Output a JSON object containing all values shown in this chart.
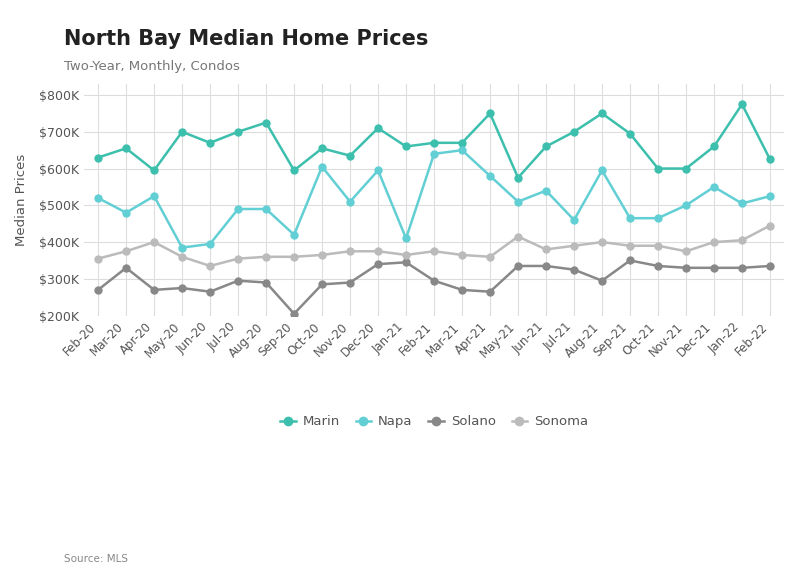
{
  "title": "North Bay Median Home Prices",
  "subtitle": "Two-Year, Monthly, Condos",
  "source": "Source: MLS",
  "ylabel": "Median Prices",
  "x_labels": [
    "Feb-20",
    "Mar-20",
    "Apr-20",
    "May-20",
    "Jun-20",
    "Jul-20",
    "Aug-20",
    "Sep-20",
    "Oct-20",
    "Nov-20",
    "Dec-20",
    "Jan-21",
    "Feb-21",
    "Mar-21",
    "Apr-21",
    "May-21",
    "Jun-21",
    "Jul-21",
    "Aug-21",
    "Sep-21",
    "Oct-21",
    "Nov-21",
    "Dec-21",
    "Jan-22",
    "Feb-22"
  ],
  "marin": [
    630000,
    655000,
    595000,
    700000,
    670000,
    700000,
    725000,
    595000,
    655000,
    635000,
    710000,
    660000,
    670000,
    670000,
    750000,
    575000,
    660000,
    700000,
    750000,
    695000,
    600000,
    600000,
    660000,
    775000,
    625000
  ],
  "napa": [
    520000,
    480000,
    525000,
    385000,
    395000,
    490000,
    490000,
    420000,
    605000,
    510000,
    595000,
    410000,
    640000,
    650000,
    580000,
    510000,
    540000,
    460000,
    595000,
    465000,
    465000,
    500000,
    550000,
    505000,
    525000
  ],
  "solano": [
    270000,
    330000,
    270000,
    275000,
    265000,
    295000,
    290000,
    205000,
    285000,
    290000,
    340000,
    345000,
    295000,
    270000,
    265000,
    335000,
    335000,
    325000,
    295000,
    350000,
    335000,
    330000,
    330000,
    330000,
    335000
  ],
  "sonoma": [
    355000,
    375000,
    400000,
    360000,
    335000,
    355000,
    360000,
    360000,
    365000,
    375000,
    375000,
    365000,
    375000,
    365000,
    360000,
    415000,
    380000,
    390000,
    400000,
    390000,
    390000,
    375000,
    400000,
    405000,
    445000
  ],
  "marin_color": "#3dbfad",
  "napa_color": "#62cfd4",
  "solano_color": "#888888",
  "sonoma_color": "#bbbbbb",
  "ylim": [
    200000,
    830000
  ],
  "yticks": [
    200000,
    300000,
    400000,
    500000,
    600000,
    700000,
    800000
  ],
  "background_color": "#ffffff",
  "grid_color": "#dddddd"
}
